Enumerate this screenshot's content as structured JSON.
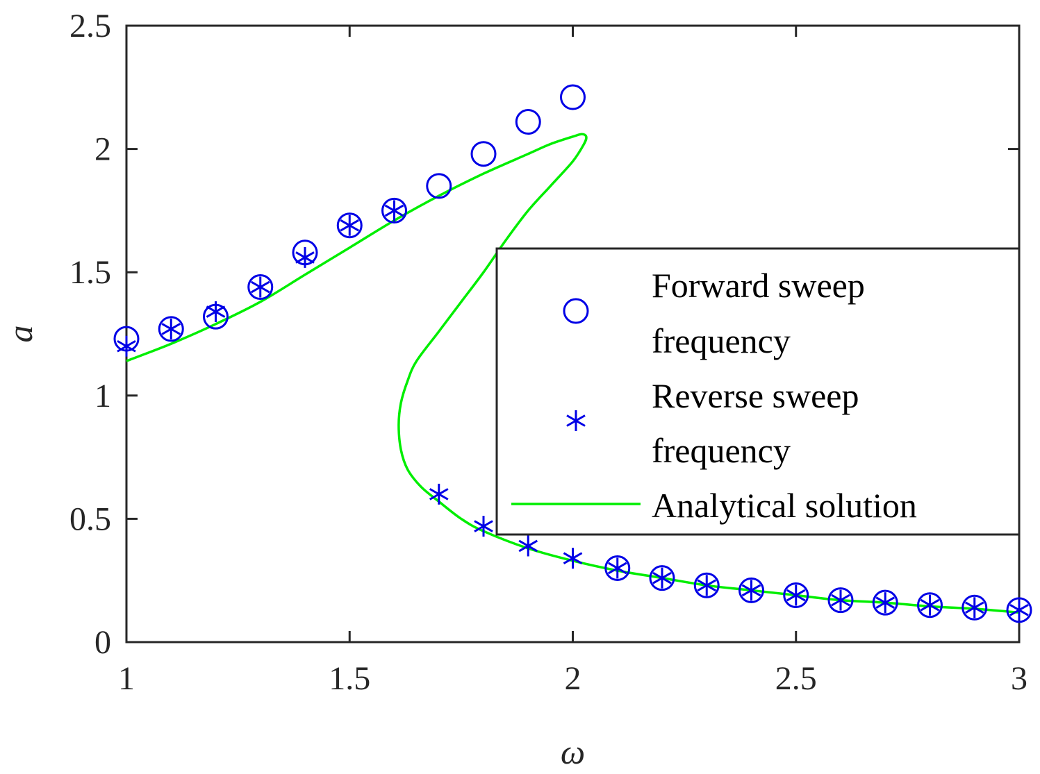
{
  "colors": {
    "forward": "#0000E6",
    "reverse": "#0000E6",
    "analytical": "#00EE00",
    "axis": "#262626"
  },
  "chart_data": {
    "type": "scatter",
    "title": "",
    "xlabel": "ω",
    "ylabel": "a",
    "xlim": [
      1,
      3
    ],
    "ylim": [
      0,
      2.5
    ],
    "grid": false,
    "box": true,
    "legend_position": "right",
    "x_ticks": [
      1,
      1.5,
      2,
      2.5,
      3
    ],
    "y_ticks": [
      0,
      0.5,
      1,
      1.5,
      2,
      2.5
    ],
    "x_tick_labels": [
      "1",
      "1.5",
      "2",
      "2.5",
      "3"
    ],
    "y_tick_labels": [
      "0",
      "0.5",
      "1",
      "1.5",
      "2",
      "2.5"
    ],
    "series": [
      {
        "name": "Forward sweep frequency",
        "legend_lines": [
          "Forward sweep",
          "frequency"
        ],
        "marker": "circle",
        "x": [
          1.0,
          1.1,
          1.2,
          1.3,
          1.4,
          1.5,
          1.6,
          1.7,
          1.8,
          1.9,
          2.0,
          2.1,
          2.2,
          2.3,
          2.4,
          2.5,
          2.6,
          2.7,
          2.8,
          2.9,
          3.0
        ],
        "y": [
          1.23,
          1.27,
          1.32,
          1.44,
          1.58,
          1.69,
          1.75,
          1.85,
          1.98,
          2.11,
          2.21,
          0.3,
          0.26,
          0.23,
          0.21,
          0.19,
          0.17,
          0.16,
          0.15,
          0.14,
          0.13
        ]
      },
      {
        "name": "Reverse sweep frequency",
        "legend_lines": [
          "Reverse sweep",
          "frequency"
        ],
        "marker": "asterisk",
        "x": [
          1.0,
          1.1,
          1.2,
          1.3,
          1.4,
          1.5,
          1.6,
          1.7,
          1.8,
          1.9,
          2.0,
          2.1,
          2.2,
          2.3,
          2.4,
          2.5,
          2.6,
          2.7,
          2.8,
          2.9,
          3.0
        ],
        "y": [
          1.2,
          1.27,
          1.34,
          1.44,
          1.56,
          1.69,
          1.75,
          0.6,
          0.47,
          0.39,
          0.34,
          0.3,
          0.26,
          0.23,
          0.21,
          0.19,
          0.17,
          0.16,
          0.15,
          0.14,
          0.13
        ]
      },
      {
        "name": "Analytical solution",
        "legend_lines": [
          "Analytical solution"
        ],
        "marker": "line",
        "x": [
          1.0,
          1.1,
          1.2,
          1.3,
          1.4,
          1.5,
          1.6,
          1.7,
          1.8,
          1.9,
          1.95,
          2.0,
          2.02,
          2.03,
          2.025,
          2.0,
          1.95,
          1.9,
          1.85,
          1.8,
          1.75,
          1.7,
          1.65,
          1.63,
          1.615,
          1.61,
          1.615,
          1.63,
          1.66,
          1.7,
          1.75,
          1.8,
          1.9,
          2.0,
          2.1,
          2.2,
          2.3,
          2.4,
          2.5,
          2.6,
          2.7,
          2.8,
          2.9,
          3.0
        ],
        "y": [
          1.14,
          1.21,
          1.29,
          1.38,
          1.49,
          1.6,
          1.71,
          1.81,
          1.9,
          1.98,
          2.02,
          2.05,
          2.06,
          2.05,
          2.02,
          1.95,
          1.85,
          1.75,
          1.63,
          1.5,
          1.38,
          1.26,
          1.14,
          1.06,
          0.97,
          0.88,
          0.78,
          0.7,
          0.63,
          0.57,
          0.5,
          0.45,
          0.38,
          0.33,
          0.29,
          0.26,
          0.23,
          0.21,
          0.19,
          0.17,
          0.16,
          0.145,
          0.135,
          0.12
        ]
      }
    ]
  }
}
